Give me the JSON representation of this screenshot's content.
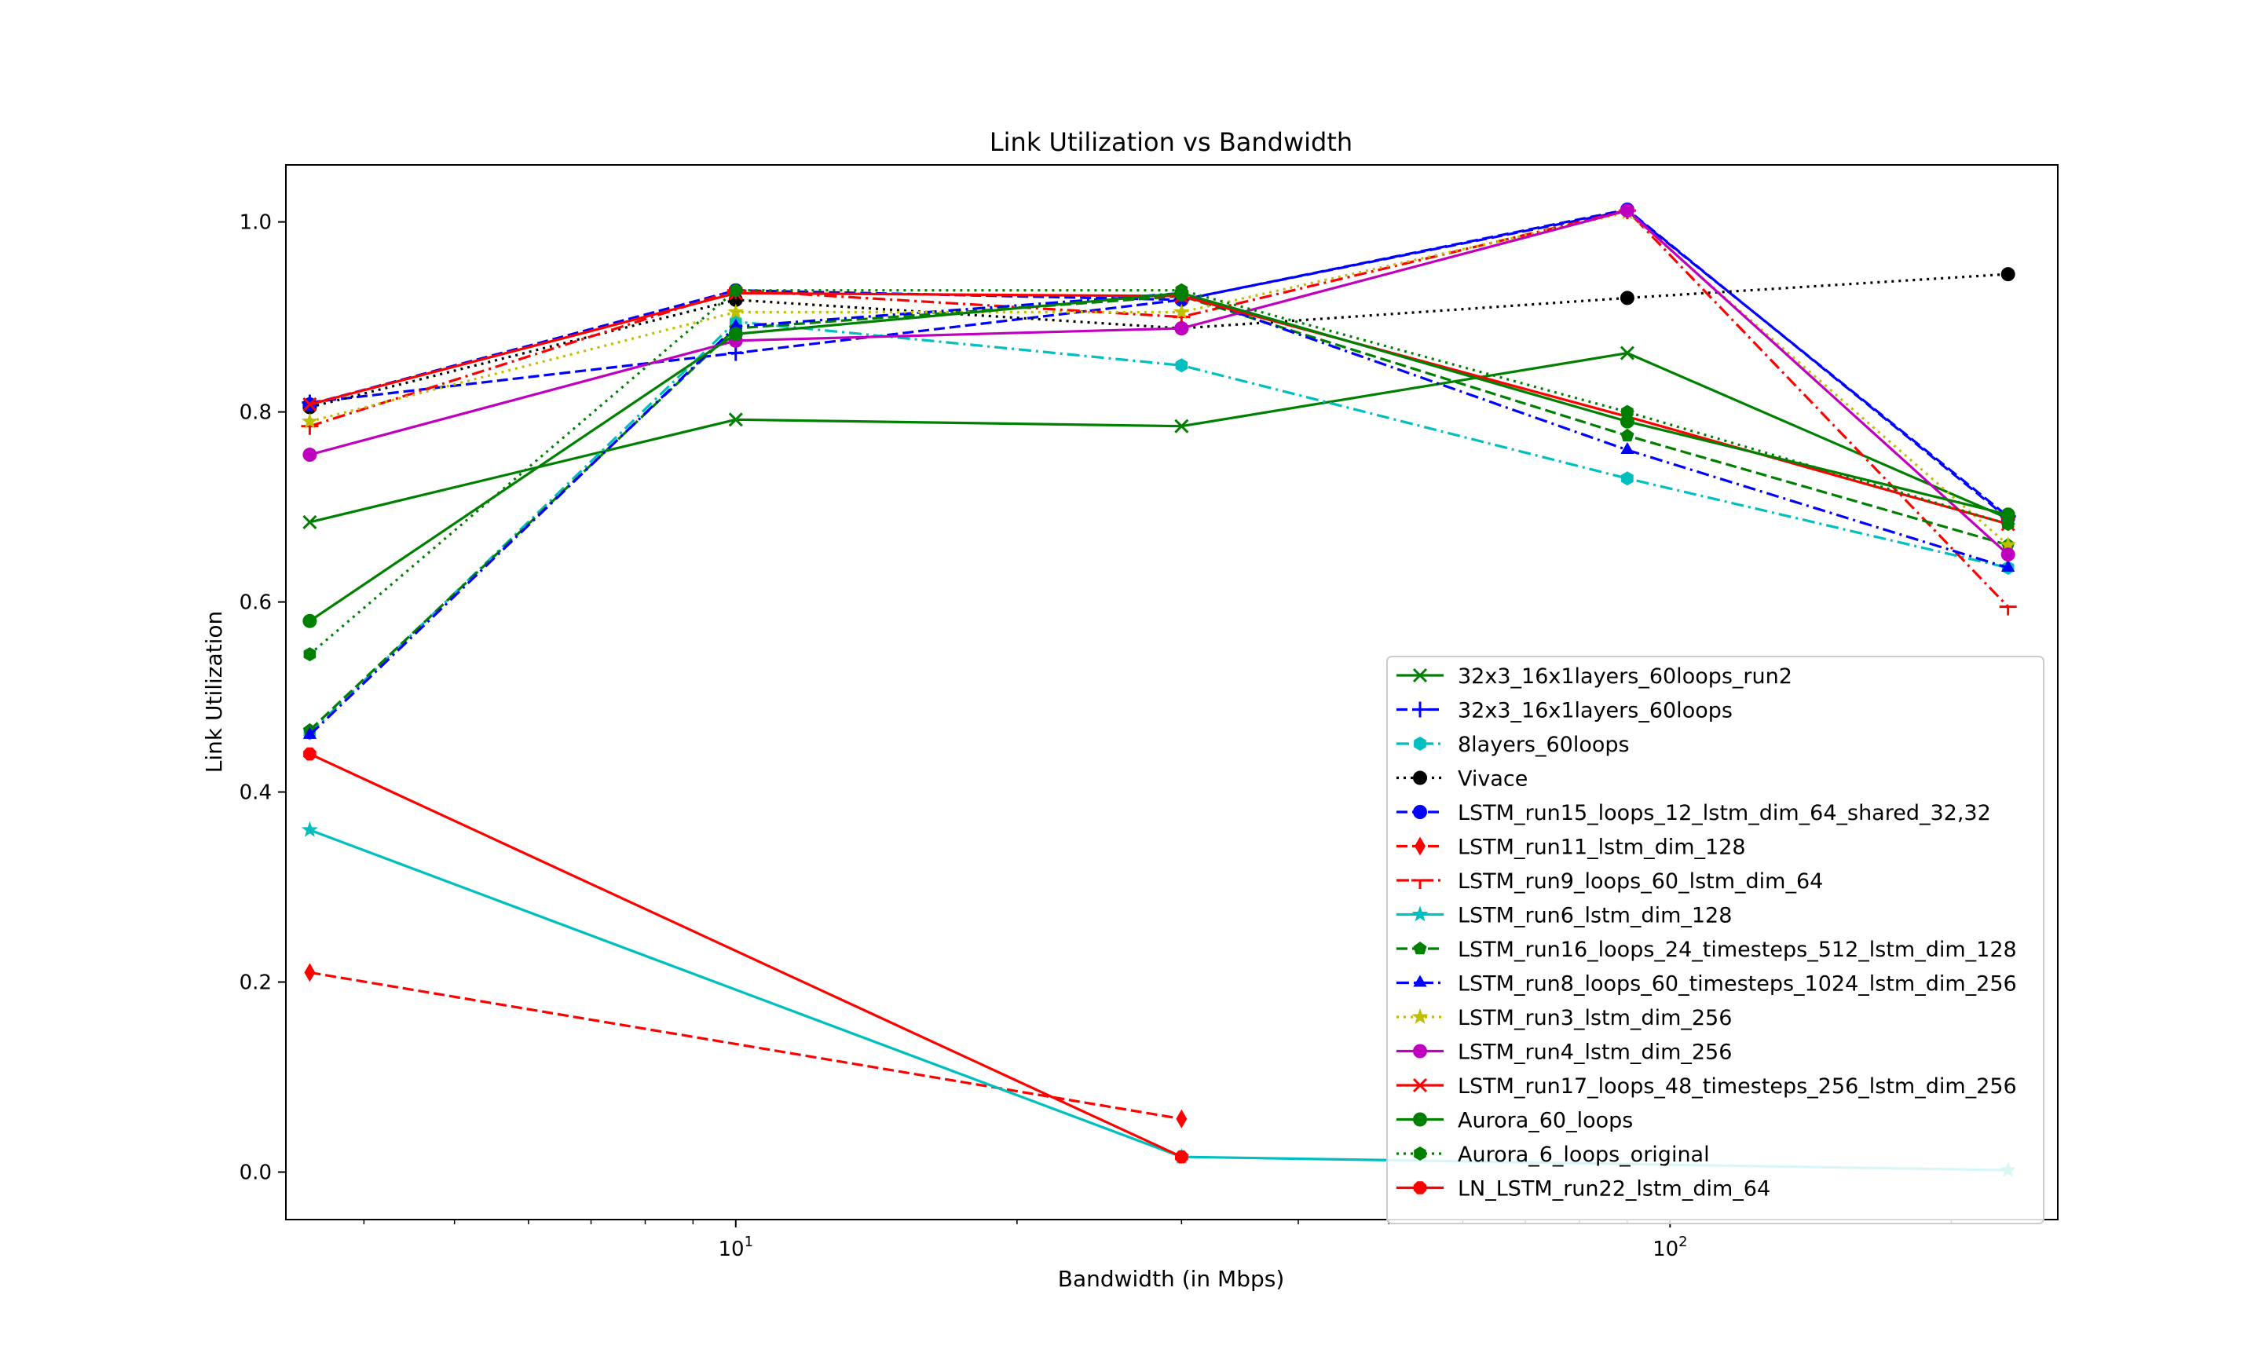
{
  "chart_data": {
    "type": "line",
    "title": "Link Utilization vs Bandwidth",
    "xlabel": "Bandwidth (in Mbps)",
    "ylabel": "Link Utilization",
    "xscale": "log",
    "xlim": [
      3.3,
      260
    ],
    "ylim": [
      -0.05,
      1.06
    ],
    "x_ticks": [
      {
        "value": 10,
        "base": "10",
        "exp": "1"
      },
      {
        "value": 100,
        "base": "10",
        "exp": "2"
      }
    ],
    "y_ticks": [
      {
        "value": 0.0,
        "label": "0.0"
      },
      {
        "value": 0.2,
        "label": "0.2"
      },
      {
        "value": 0.4,
        "label": "0.4"
      },
      {
        "value": 0.6,
        "label": "0.6"
      },
      {
        "value": 0.8,
        "label": "0.8"
      },
      {
        "value": 1.0,
        "label": "1.0"
      }
    ],
    "legend_position": "lower-right",
    "series": [
      {
        "name": "32x3_16x1layers_60loops_run2",
        "color": "#008000",
        "dash": "solid",
        "marker": "x",
        "x": [
          3.5,
          10,
          30,
          90,
          230
        ],
        "y": [
          0.684,
          0.792,
          0.785,
          0.862,
          0.688
        ]
      },
      {
        "name": "32x3_16x1layers_60loops",
        "color": "#0000ff",
        "dash": "dashed",
        "marker": "plus",
        "x": [
          3.5,
          10,
          30,
          90,
          230
        ],
        "y": [
          0.81,
          0.862,
          0.918,
          1.012,
          0.69
        ]
      },
      {
        "name": "8layers_60loops",
        "color": "#00bfbf",
        "dash": "dashdot",
        "marker": "hexagon",
        "x": [
          3.5,
          10,
          30,
          90,
          230
        ],
        "y": [
          0.462,
          0.895,
          0.849,
          0.73,
          0.636
        ]
      },
      {
        "name": "Vivace",
        "color": "#000000",
        "dash": "dotted",
        "marker": "circle",
        "x": [
          3.5,
          10,
          30,
          90,
          230
        ],
        "y": [
          0.805,
          0.918,
          0.888,
          0.92,
          0.945
        ]
      },
      {
        "name": "LSTM_run15_loops_12_lstm_dim_64_shared_32,32",
        "color": "#0000ff",
        "dash": "dashed",
        "marker": "circle",
        "x": [
          3.5,
          10,
          30,
          90,
          230
        ],
        "y": [
          0.808,
          0.928,
          0.918,
          1.013,
          0.688
        ]
      },
      {
        "name": "LSTM_run11_lstm_dim_128",
        "color": "#ff0000",
        "dash": "dashed",
        "marker": "thin_diamond",
        "x": [
          3.5,
          30
        ],
        "y": [
          0.21,
          0.056
        ]
      },
      {
        "name": "LSTM_run9_loops_60_lstm_dim_64",
        "color": "#ff0000",
        "dash": "dashdot",
        "marker": "tri",
        "x": [
          3.5,
          10,
          30,
          90,
          230
        ],
        "y": [
          0.785,
          0.928,
          0.9,
          1.012,
          0.595
        ]
      },
      {
        "name": "LSTM_run6_lstm_dim_128",
        "color": "#00bfbf",
        "dash": "solid",
        "marker": "star",
        "x": [
          3.5,
          30,
          230
        ],
        "y": [
          0.36,
          0.016,
          0.002
        ]
      },
      {
        "name": "LSTM_run16_loops_24_timesteps_512_lstm_dim_128",
        "color": "#008000",
        "dash": "dashed",
        "marker": "pentagon",
        "x": [
          3.5,
          10,
          30,
          90,
          230
        ],
        "y": [
          0.465,
          0.888,
          0.922,
          0.775,
          0.66
        ]
      },
      {
        "name": "LSTM_run8_loops_60_timesteps_1024_lstm_dim_256",
        "color": "#0000ff",
        "dash": "dashdot",
        "marker": "triangle",
        "x": [
          3.5,
          10,
          30,
          90,
          230
        ],
        "y": [
          0.46,
          0.89,
          0.925,
          0.76,
          0.636
        ]
      },
      {
        "name": "LSTM_run3_lstm_dim_256",
        "color": "#bfbf00",
        "dash": "dotted",
        "marker": "star",
        "x": [
          3.5,
          10,
          30,
          90,
          230
        ],
        "y": [
          0.79,
          0.905,
          0.905,
          1.01,
          0.66
        ]
      },
      {
        "name": "LSTM_run4_lstm_dim_256",
        "color": "#bf00bf",
        "dash": "solid",
        "marker": "circle",
        "x": [
          3.5,
          10,
          30,
          90,
          230
        ],
        "y": [
          0.755,
          0.875,
          0.888,
          1.012,
          0.65
        ]
      },
      {
        "name": "LSTM_run17_loops_48_timesteps_256_lstm_dim_256",
        "color": "#ff0000",
        "dash": "solid",
        "marker": "x",
        "x": [
          3.5,
          10,
          30,
          90,
          230
        ],
        "y": [
          0.808,
          0.925,
          0.922,
          0.795,
          0.682
        ]
      },
      {
        "name": "Aurora_60_loops",
        "color": "#008000",
        "dash": "solid",
        "marker": "circle",
        "x": [
          3.5,
          10,
          30,
          90,
          230
        ],
        "y": [
          0.58,
          0.882,
          0.925,
          0.79,
          0.692
        ]
      },
      {
        "name": "Aurora_6_loops_original",
        "color": "#008000",
        "dash": "dotted",
        "marker": "hexagon",
        "x": [
          3.5,
          10,
          30,
          90,
          230
        ],
        "y": [
          0.545,
          0.928,
          0.928,
          0.8,
          0.682
        ]
      },
      {
        "name": "LN_LSTM_run22_lstm_dim_64",
        "color": "#ff0000",
        "dash": "solid",
        "marker": "octagon",
        "x": [
          3.5,
          30
        ],
        "y": [
          0.44,
          0.016
        ]
      }
    ]
  }
}
